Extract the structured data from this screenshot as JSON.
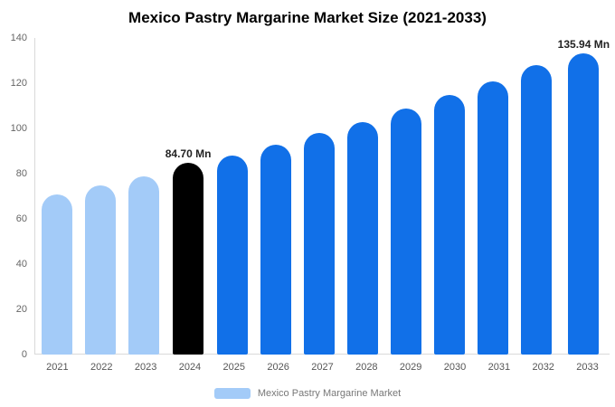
{
  "title": "Mexico Pastry Margarine Market Size (2021-2033)",
  "legend": {
    "label": "Mexico Pastry Margarine Market",
    "swatch_color": "#a3cbf8"
  },
  "colors": {
    "past_bar": "#a3cbf8",
    "highlight_bar": "#000000",
    "forecast_bar": "#1170e8",
    "axis_line": "#d9d9d9",
    "tick_text": "#666666"
  },
  "chart_data": {
    "type": "bar",
    "title": "Mexico Pastry Margarine Market Size (2021-2033)",
    "categories": [
      "2021",
      "2022",
      "2023",
      "2024",
      "2025",
      "2026",
      "2027",
      "2028",
      "2029",
      "2030",
      "2031",
      "2032",
      "2033"
    ],
    "values": [
      71,
      75,
      79,
      84.7,
      88,
      93,
      98,
      103,
      109,
      115,
      121,
      128,
      135.94
    ],
    "bar_roles": [
      "past",
      "past",
      "past",
      "highlight",
      "forecast",
      "forecast",
      "forecast",
      "forecast",
      "forecast",
      "forecast",
      "forecast",
      "forecast",
      "forecast"
    ],
    "annotations": [
      {
        "category": "2024",
        "text": "84.70 Mn"
      },
      {
        "category": "2033",
        "text": "135.94 Mn"
      }
    ],
    "xlabel": "",
    "ylabel": "",
    "ylim": [
      0,
      140
    ],
    "yticks": [
      0,
      20,
      40,
      60,
      80,
      100,
      120,
      140
    ],
    "grid": false,
    "legend_position": "bottom",
    "legend_entries": [
      "Mexico Pastry Margarine Market"
    ]
  }
}
